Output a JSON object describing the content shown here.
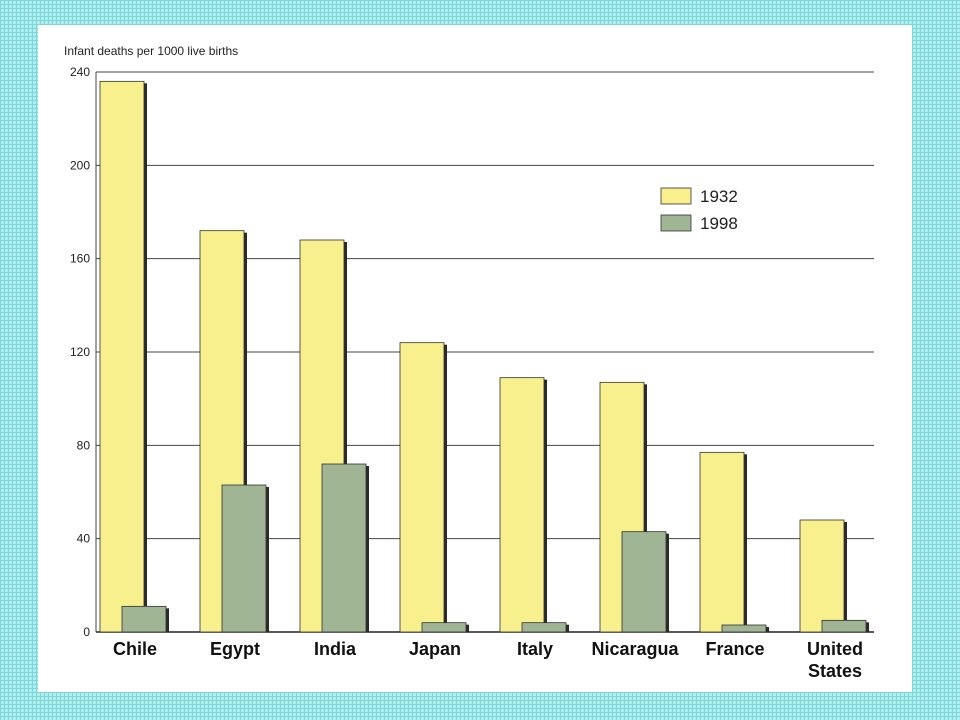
{
  "chart_data": {
    "type": "bar",
    "title": "",
    "ylabel": "Infant deaths per 1000 live births",
    "xlabel": "",
    "ylim": [
      0,
      240
    ],
    "yticks": [
      0,
      40,
      80,
      120,
      160,
      200,
      240
    ],
    "grid": true,
    "legend_position": "top-right",
    "categories": [
      [
        "Chile"
      ],
      [
        "Egypt"
      ],
      [
        "India"
      ],
      [
        "Japan"
      ],
      [
        "Italy"
      ],
      [
        "Nicaragua"
      ],
      [
        "France"
      ],
      [
        "United",
        "States"
      ]
    ],
    "series": [
      {
        "name": "1932",
        "color": "#f7f08c",
        "values": [
          236,
          172,
          168,
          124,
          109,
          107,
          77,
          48
        ]
      },
      {
        "name": "1998",
        "color": "#9fb594",
        "values": [
          11,
          63,
          72,
          4,
          4,
          43,
          3,
          5
        ]
      }
    ]
  }
}
